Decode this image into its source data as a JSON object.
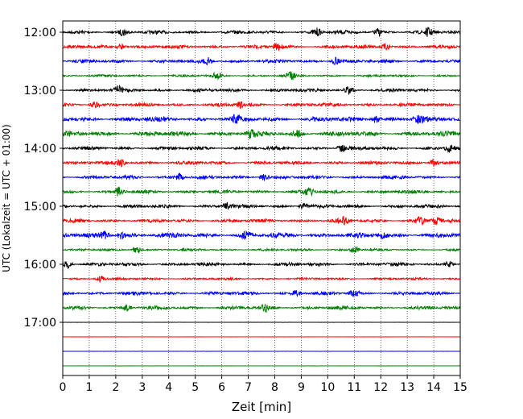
{
  "chart_data": {
    "type": "line",
    "title": "",
    "xlabel": "Zeit  [min]",
    "ylabel": "UTC (Lokalzeit = UTC + 01:00)",
    "xlim": [
      0,
      15
    ],
    "x_ticks": [
      "0",
      "1",
      "2",
      "3",
      "4",
      "5",
      "6",
      "7",
      "8",
      "9",
      "10",
      "11",
      "12",
      "13",
      "14",
      "15"
    ],
    "y_ticks": [
      "12:00",
      "13:00",
      "14:00",
      "15:00",
      "16:00",
      "17:00"
    ],
    "x_grid": "dotted vertical lines at each minute",
    "legend": "none",
    "trace_colors": [
      "#000000",
      "#ff0000",
      "#0000ff",
      "#008000"
    ],
    "traces": [
      {
        "start": "12:00",
        "amplitude": "medium",
        "events_min": [
          2.3,
          9.6,
          11.9,
          13.8
        ]
      },
      {
        "start": "12:15",
        "amplitude": "medium",
        "events_min": [
          2.2,
          8.1,
          12.2
        ]
      },
      {
        "start": "12:30",
        "amplitude": "medium",
        "events_min": [
          5.5,
          10.3
        ]
      },
      {
        "start": "12:45",
        "amplitude": "low",
        "events_min": [
          5.8,
          8.6
        ]
      },
      {
        "start": "13:00",
        "amplitude": "medium",
        "events_min": [
          2.1,
          10.8
        ]
      },
      {
        "start": "13:15",
        "amplitude": "medium",
        "events_min": [
          1.2,
          6.7
        ]
      },
      {
        "start": "13:30",
        "amplitude": "high",
        "events_min": [
          6.5,
          11.8,
          13.4
        ]
      },
      {
        "start": "13:45",
        "amplitude": "high",
        "events_min": [
          7.1,
          8.9
        ]
      },
      {
        "start": "14:00",
        "amplitude": "medium",
        "events_min": [
          10.5,
          14.6
        ]
      },
      {
        "start": "14:15",
        "amplitude": "medium",
        "events_min": [
          2.2,
          14.0
        ]
      },
      {
        "start": "14:30",
        "amplitude": "medium",
        "events_min": [
          4.4,
          7.6
        ]
      },
      {
        "start": "14:45",
        "amplitude": "medium",
        "events_min": [
          2.1,
          9.3
        ]
      },
      {
        "start": "15:00",
        "amplitude": "medium",
        "events_min": [
          6.2,
          9.1
        ]
      },
      {
        "start": "15:15",
        "amplitude": "medium",
        "events_min": [
          10.6,
          13.5,
          14.1
        ]
      },
      {
        "start": "15:30",
        "amplitude": "high",
        "events_min": [
          1.6,
          2.2,
          6.9,
          12.1
        ]
      },
      {
        "start": "15:45",
        "amplitude": "low",
        "events_min": [
          2.8,
          11.0
        ]
      },
      {
        "start": "16:00",
        "amplitude": "medium",
        "events_min": [
          0.2,
          14.6
        ]
      },
      {
        "start": "16:15",
        "amplitude": "low",
        "events_min": [
          1.4
        ]
      },
      {
        "start": "16:30",
        "amplitude": "medium",
        "events_min": [
          8.8,
          11.0
        ]
      },
      {
        "start": "16:45",
        "amplitude": "medium",
        "events_min": [
          2.4,
          7.6
        ]
      },
      {
        "start": "17:00",
        "amplitude": "none",
        "events_min": []
      },
      {
        "start": "17:15",
        "amplitude": "none",
        "events_min": []
      },
      {
        "start": "17:30",
        "amplitude": "none",
        "events_min": []
      },
      {
        "start": "17:45",
        "amplitude": "none",
        "events_min": []
      }
    ]
  }
}
